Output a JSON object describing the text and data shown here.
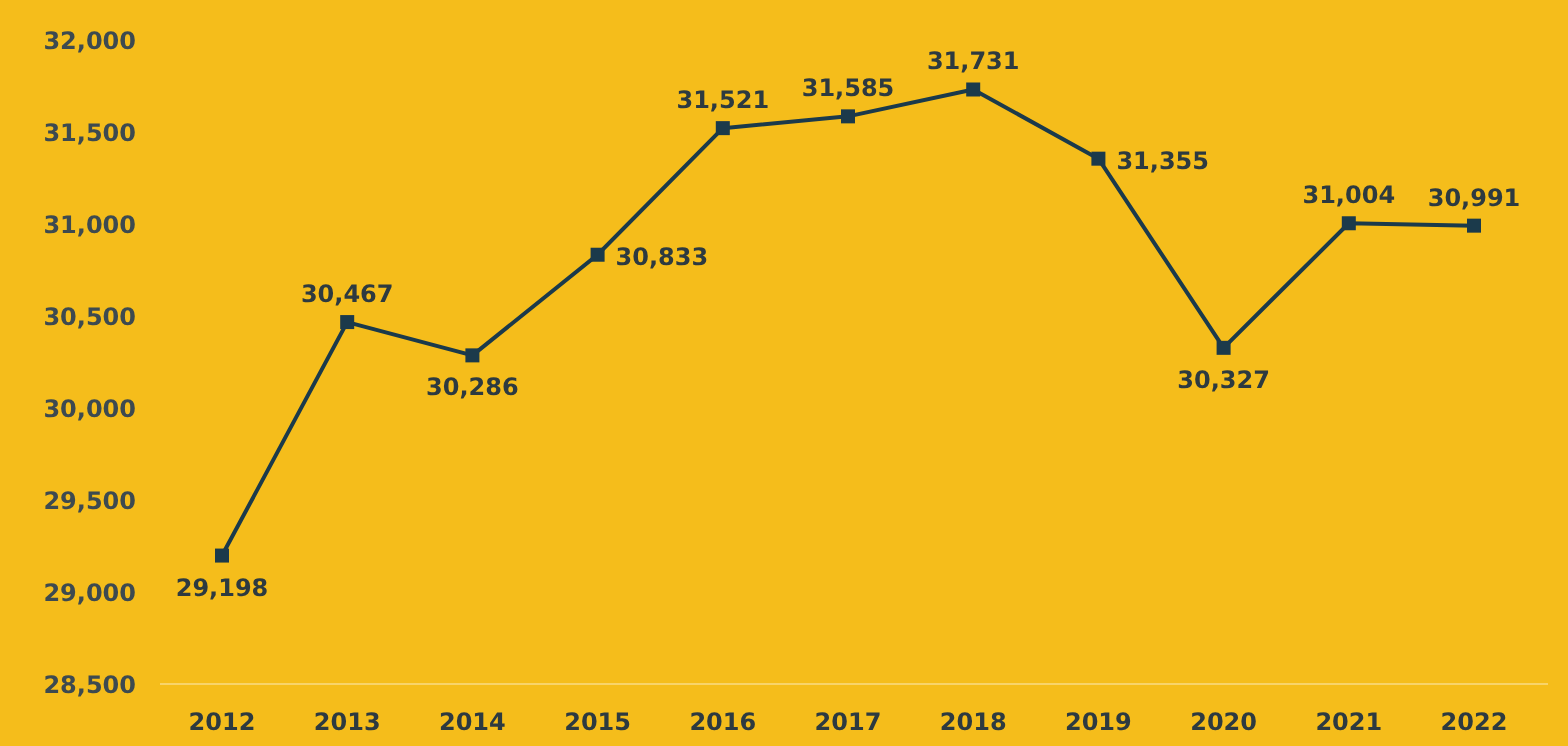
{
  "chart_data": {
    "type": "line",
    "categories": [
      "2012",
      "2013",
      "2014",
      "2015",
      "2016",
      "2017",
      "2018",
      "2019",
      "2020",
      "2021",
      "2022"
    ],
    "series": [
      {
        "color": "#1b3a4b",
        "values": [
          29198,
          30467,
          30286,
          30833,
          31521,
          31585,
          31731,
          31355,
          30327,
          31004,
          30991
        ],
        "value_labels": [
          "29,198",
          "30,467",
          "30,286",
          "30,833",
          "31,521",
          "31,585",
          "31,731",
          "31,355",
          "30,327",
          "31,004",
          "30,991"
        ]
      }
    ],
    "ylim": [
      28500,
      32000
    ],
    "yticks": [
      {
        "value": 28500,
        "label": "28,500"
      },
      {
        "value": 29000,
        "label": "29,000"
      },
      {
        "value": 29500,
        "label": "29,500"
      },
      {
        "value": 30000,
        "label": "30,000"
      },
      {
        "value": 30500,
        "label": "30,500"
      },
      {
        "value": 31000,
        "label": "31,000"
      },
      {
        "value": 31500,
        "label": "31,500"
      },
      {
        "value": 32000,
        "label": "32,000"
      }
    ],
    "grid": false,
    "marker": "square",
    "line_style": "solid"
  }
}
